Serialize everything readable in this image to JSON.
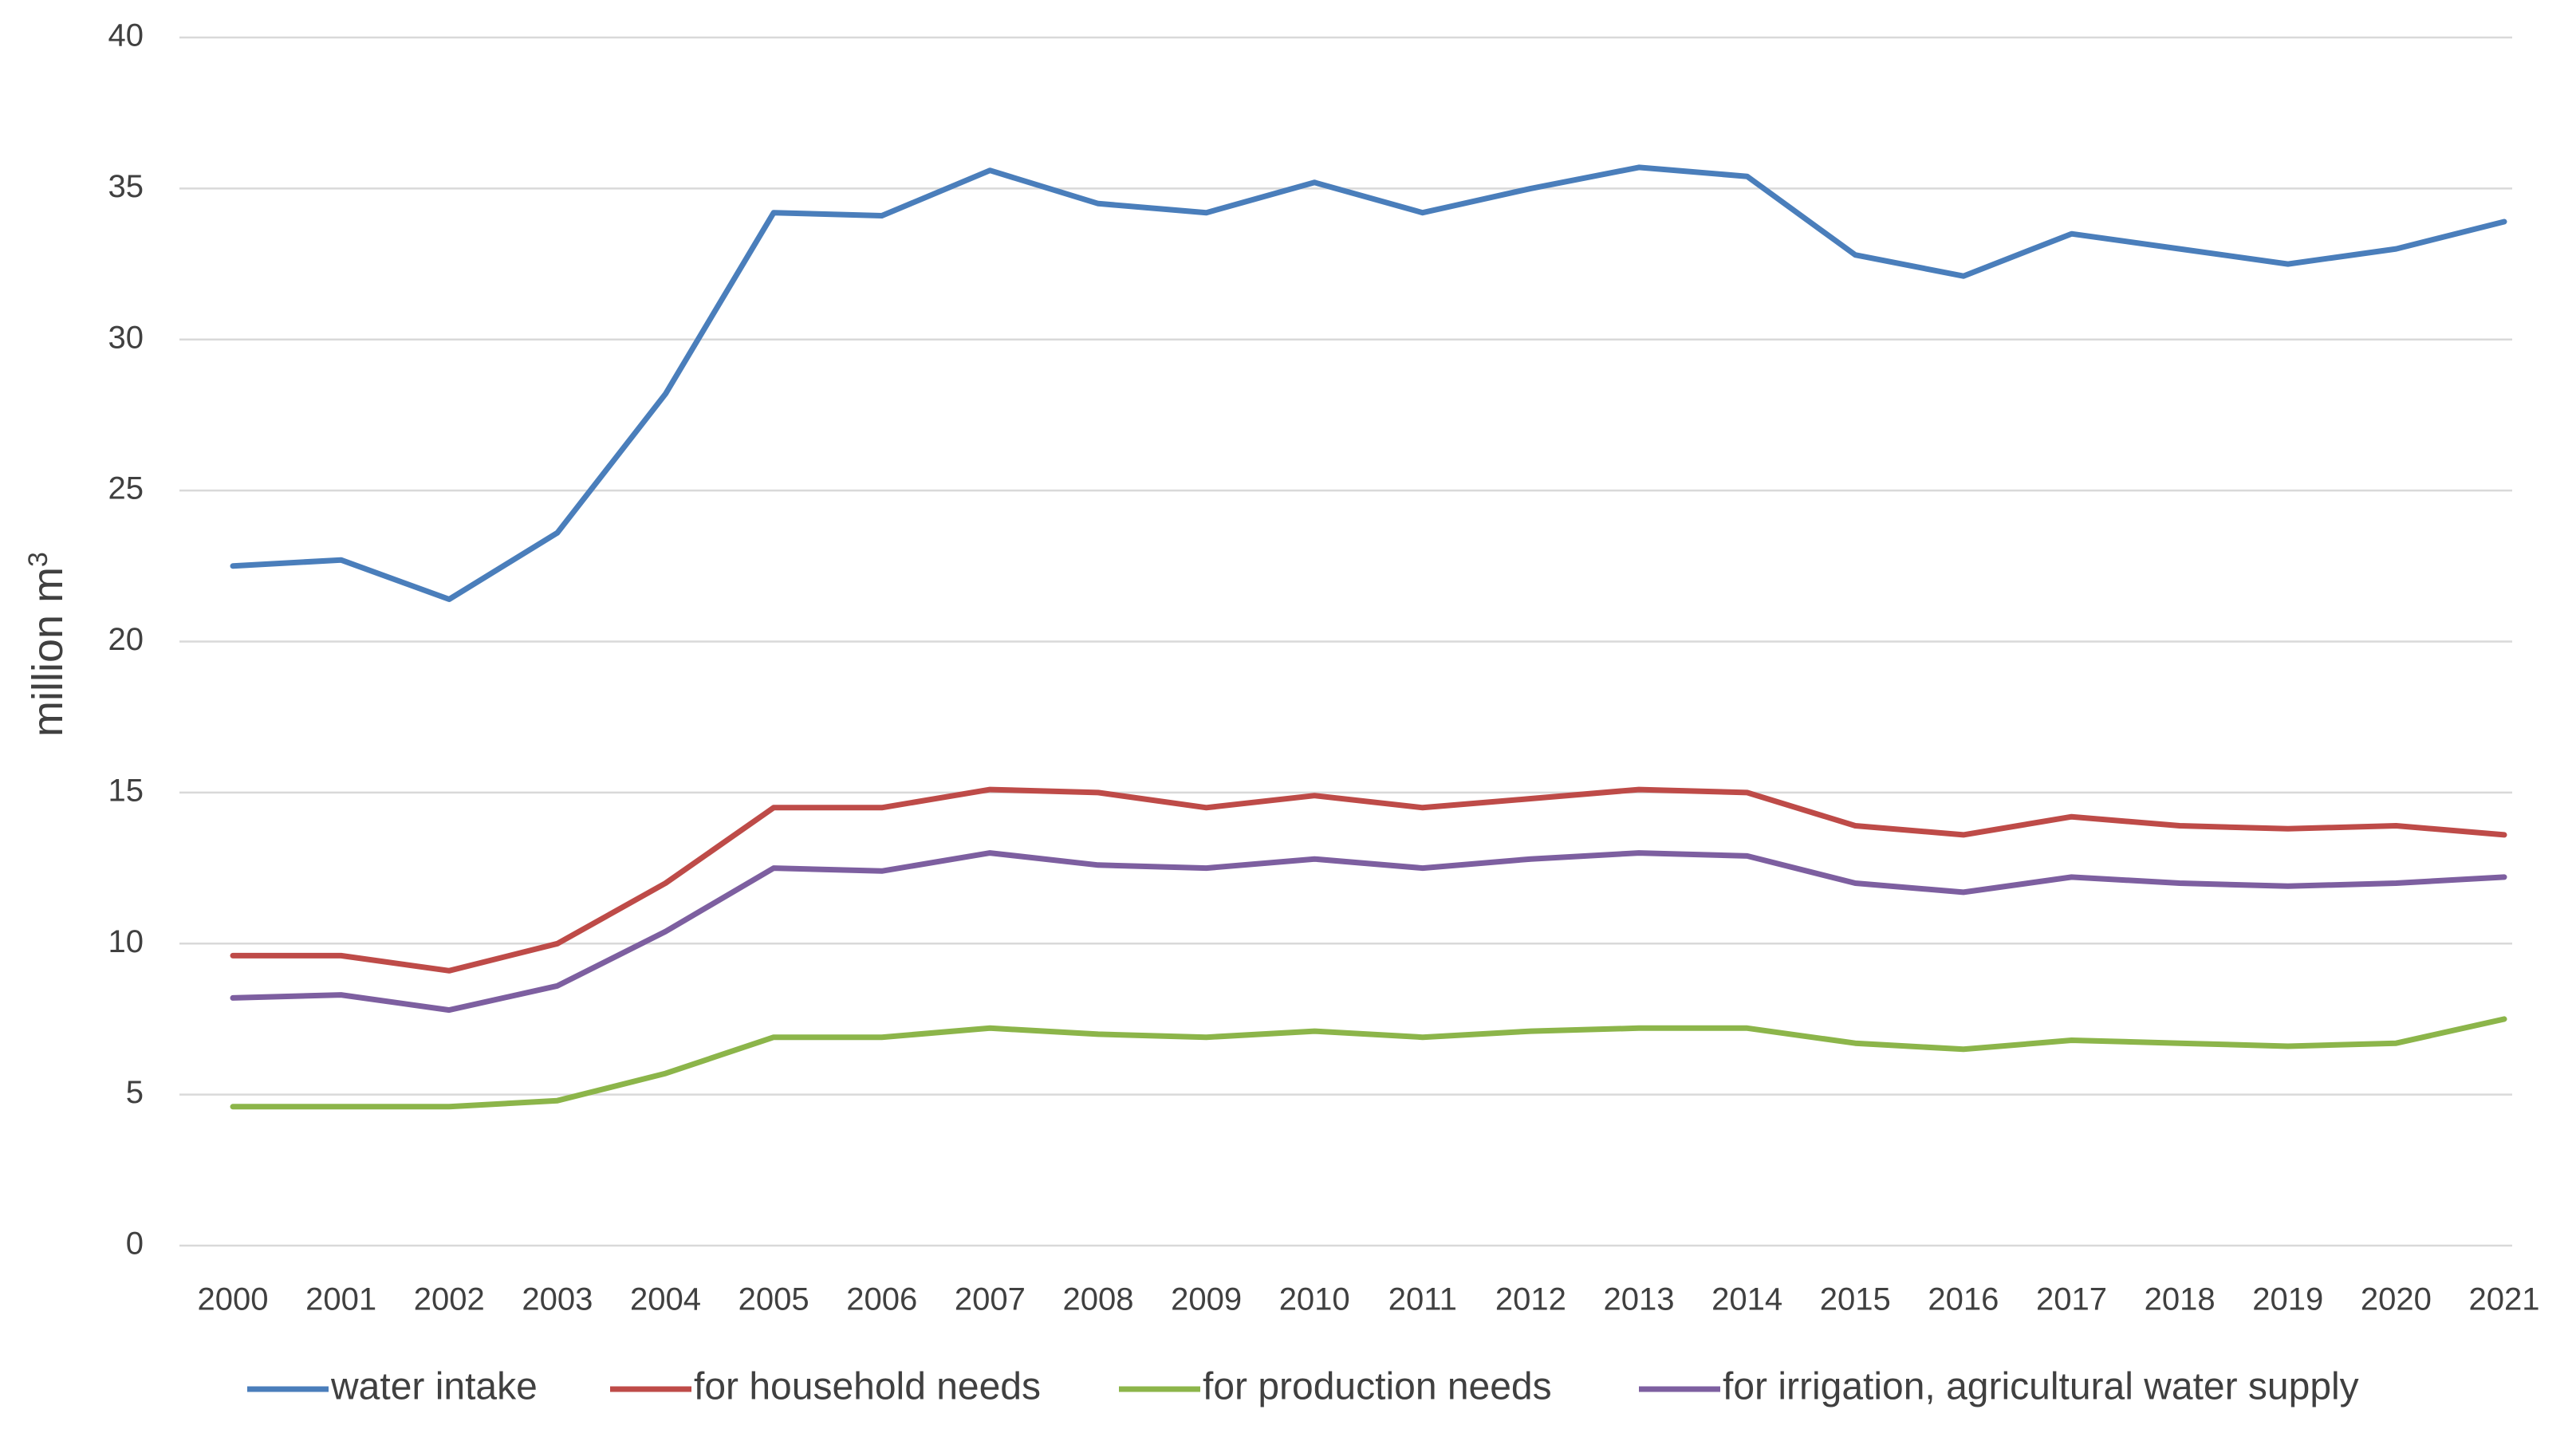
{
  "chart_data": {
    "type": "line",
    "title": "",
    "xlabel": "",
    "ylabel": "million m",
    "ylabel_superscript": "3",
    "ylim": [
      0,
      40
    ],
    "yticks": [
      0,
      5,
      10,
      15,
      20,
      25,
      30,
      35,
      40
    ],
    "grid": true,
    "legend_position": "bottom",
    "categories": [
      "2000",
      "2001",
      "2002",
      "2003",
      "2004",
      "2005",
      "2006",
      "2007",
      "2008",
      "2009",
      "2010",
      "2011",
      "2012",
      "2013",
      "2014",
      "2015",
      "2016",
      "2017",
      "2018",
      "2019",
      "2020",
      "2021"
    ],
    "series": [
      {
        "name": "water intake",
        "color": "#4a7ebb",
        "values": [
          22.5,
          22.7,
          21.4,
          23.6,
          28.2,
          34.2,
          34.1,
          35.6,
          34.5,
          34.2,
          35.2,
          34.2,
          35.0,
          35.7,
          35.4,
          32.8,
          32.1,
          33.5,
          33.0,
          32.5,
          33.0,
          33.9
        ]
      },
      {
        "name": "for household needs",
        "color": "#be4b48",
        "values": [
          9.6,
          9.6,
          9.1,
          10.0,
          12.0,
          14.5,
          14.5,
          15.1,
          15.0,
          14.5,
          14.9,
          14.5,
          14.8,
          15.1,
          15.0,
          13.9,
          13.6,
          14.2,
          13.9,
          13.8,
          13.9,
          13.6
        ]
      },
      {
        "name": "for production needs",
        "color": "#8cb54a",
        "values": [
          4.6,
          4.6,
          4.6,
          4.8,
          5.7,
          6.9,
          6.9,
          7.2,
          7.0,
          6.9,
          7.1,
          6.9,
          7.1,
          7.2,
          7.2,
          6.7,
          6.5,
          6.8,
          6.7,
          6.6,
          6.7,
          7.5
        ]
      },
      {
        "name": "for irrigation, agricultural water supply",
        "color": "#7d5fa0",
        "values": [
          8.2,
          8.3,
          7.8,
          8.6,
          10.4,
          12.5,
          12.4,
          13.0,
          12.6,
          12.5,
          12.8,
          12.5,
          12.8,
          13.0,
          12.9,
          12.0,
          11.7,
          12.2,
          12.0,
          11.9,
          12.0,
          12.2
        ]
      }
    ]
  }
}
